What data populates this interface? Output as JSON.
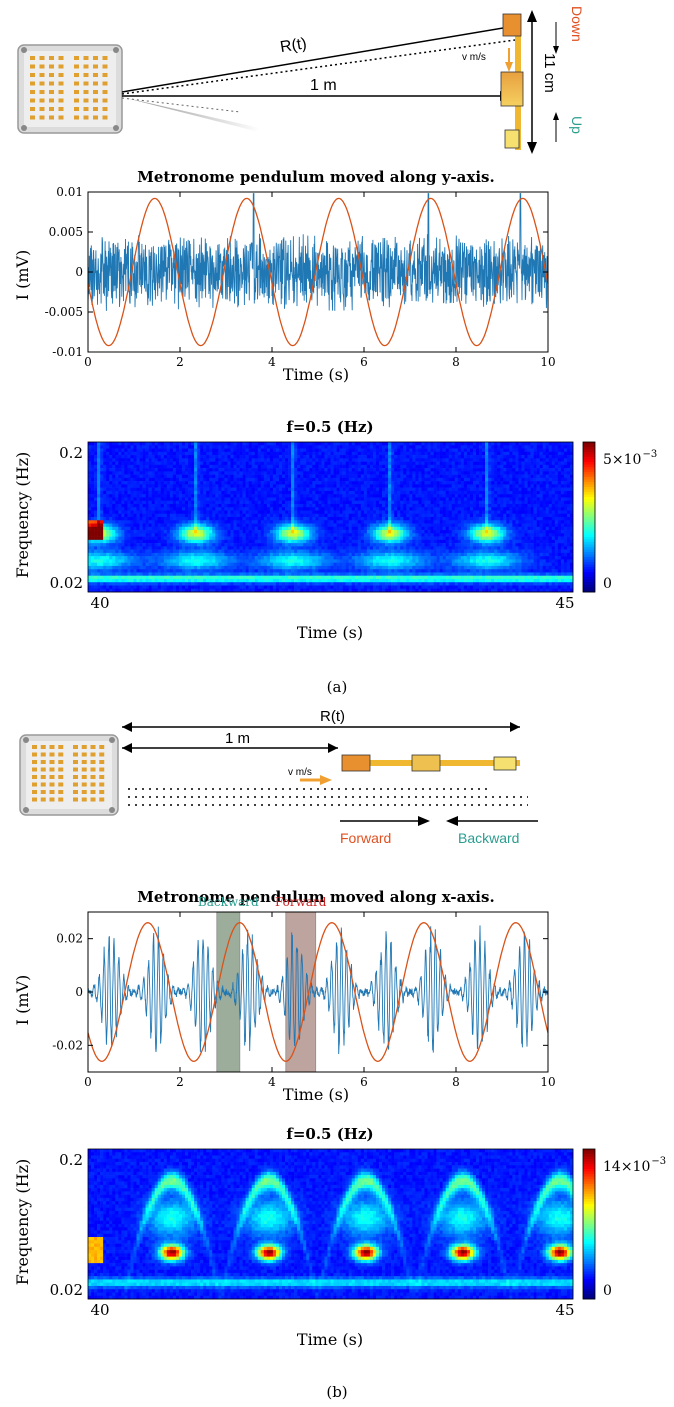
{
  "colors": {
    "signal": "#1f77b4",
    "sine": "#d95319",
    "orange": "#f0a030",
    "accent_red": "#e05020",
    "accent_teal": "#2a9d8f",
    "backward_band": "#4d6b4d",
    "forward_band": "#8a5a50"
  },
  "icons": {
    "sensor_board": "antenna-array-icon",
    "arrow": "arrow-icon"
  },
  "panel_a": {
    "diagram": {
      "range_label": "R(t)",
      "distance_label": "1 m",
      "speed_label": "v m/s",
      "height_label": "11 cm",
      "down_label": "Down",
      "up_label": "Up"
    },
    "label": "(a)"
  },
  "panel_b": {
    "diagram": {
      "range_label": "R(t)",
      "distance_label": "1 m",
      "speed_label": "v m/s",
      "forward_label": "Forward",
      "backward_label": "Backward"
    },
    "label": "(b)"
  },
  "chart_data": [
    {
      "type": "line",
      "title": "Metronome pendulum moved along y-axis.",
      "xlabel": "Time (s)",
      "ylabel": "I (mV)",
      "xlim": [
        0,
        10
      ],
      "ylim": [
        -0.01,
        0.01
      ],
      "xticks": [
        0,
        2,
        4,
        6,
        8,
        10
      ],
      "yticks": [
        -0.01,
        -0.005,
        0,
        0.005,
        0.01
      ],
      "ytick_labels": [
        "-0.01",
        "-0.005",
        "0",
        "0.005",
        "0.01"
      ],
      "series": [
        {
          "kind": "noise",
          "amplitude": 0.0045,
          "spike_times": [
            3.6,
            7.4,
            9.4
          ],
          "spike_amp": 0.0098
        },
        {
          "kind": "sine",
          "amplitude": 0.0092,
          "period": 2.0,
          "phase_peak": 1.45
        }
      ],
      "grid": false
    },
    {
      "type": "heatmap",
      "title": "f=0.5 (Hz)",
      "xlabel": "Time (s)",
      "ylabel": "Frequency (Hz)",
      "xlim": [
        40,
        45
      ],
      "xticks": [
        40,
        45
      ],
      "yticks": [
        0.2,
        0.02
      ],
      "colorbar_ticks": [
        "5×10",
        "0"
      ],
      "colorbar_exp": "−3",
      "event_times": [
        40.1,
        41.1,
        42.1,
        43.1,
        44.1
      ],
      "pattern": "flat"
    },
    {
      "type": "line",
      "title": "Metronome pendulum moved along x-axis.",
      "xlabel": "Time (s)",
      "ylabel": "I (mV)",
      "xlim": [
        0,
        10
      ],
      "ylim": [
        -0.03,
        0.03
      ],
      "xticks": [
        0,
        2,
        4,
        6,
        8,
        10
      ],
      "yticks": [
        -0.02,
        0,
        0.02
      ],
      "ytick_labels": [
        "-0.02",
        "0",
        "0.02"
      ],
      "series": [
        {
          "kind": "bursts",
          "amplitude": 0.024,
          "period": 2.0,
          "burst_centers": [
            0.5,
            1.6
          ]
        },
        {
          "kind": "sine",
          "amplitude": 0.026,
          "period": 2.0,
          "phase_peak": 1.3
        }
      ],
      "bands": [
        {
          "label": "Backward",
          "from": 2.8,
          "to": 3.3
        },
        {
          "label": "Forward",
          "from": 4.3,
          "to": 4.95
        }
      ],
      "grid": false
    },
    {
      "type": "heatmap",
      "title": "f=0.5 (Hz)",
      "xlabel": "Time (s)",
      "ylabel": "Frequency (Hz)",
      "xlim": [
        40,
        45
      ],
      "xticks": [
        40,
        45
      ],
      "yticks": [
        0.2,
        0.02
      ],
      "colorbar_ticks": [
        "14×10",
        "0"
      ],
      "colorbar_exp": "−3",
      "event_times": [
        40.85,
        41.85,
        42.85,
        43.85,
        44.85
      ],
      "pattern": "arch"
    }
  ]
}
